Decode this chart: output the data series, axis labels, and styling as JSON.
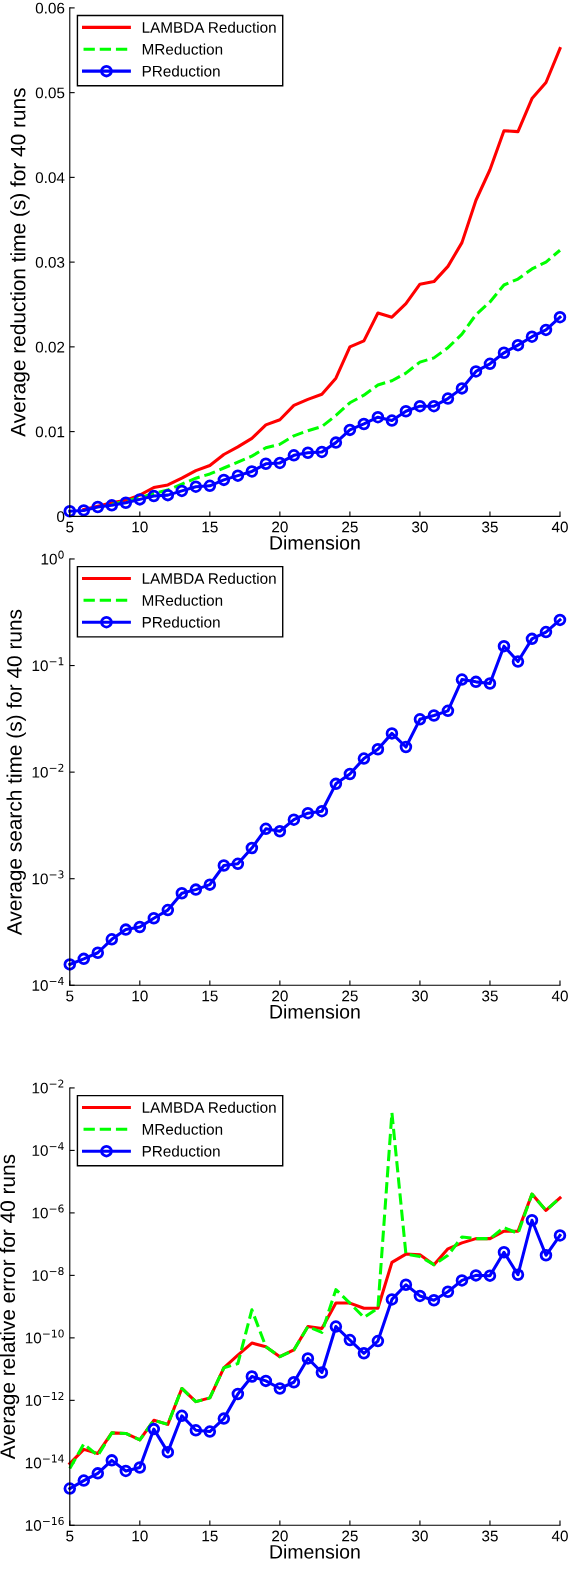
{
  "chart_data": [
    {
      "type": "line",
      "xlabel": "Dimension",
      "ylabel": "Average reduction time (s) for 40 runs",
      "x": [
        5,
        6,
        7,
        8,
        9,
        10,
        11,
        12,
        13,
        14,
        15,
        16,
        17,
        18,
        19,
        20,
        21,
        22,
        23,
        24,
        25,
        26,
        27,
        28,
        29,
        30,
        31,
        32,
        33,
        34,
        35,
        36,
        37,
        38,
        39,
        40
      ],
      "xlim": [
        5,
        40
      ],
      "xticks": [
        5,
        10,
        15,
        20,
        25,
        30,
        35,
        40
      ],
      "ylim": [
        0,
        0.06
      ],
      "yticks": [
        0,
        0.01,
        0.02,
        0.03,
        0.04,
        0.05,
        0.06
      ],
      "legend": "top left",
      "grid": false,
      "series": [
        {
          "name": "LAMBDA Reduction",
          "color": "#ff0000",
          "line_style": "solid",
          "marker": "none",
          "values": [
            null,
            0.0008,
            0.0012,
            0.0016,
            0.0019,
            0.0025,
            0.0034,
            0.0037,
            0.0045,
            0.0054,
            0.006,
            0.0073,
            0.0082,
            0.0092,
            0.0108,
            0.0114,
            0.0131,
            0.0138,
            0.0144,
            0.0163,
            0.02,
            0.0207,
            0.024,
            0.0235,
            0.0251,
            0.0274,
            0.0277,
            0.0295,
            0.0323,
            0.0373,
            0.0409,
            0.0455,
            0.0454,
            0.0493,
            0.0512,
            0.0552
          ]
        },
        {
          "name": "MReduction",
          "color": "#00ff00",
          "line_style": "dashed",
          "marker": "none",
          "values": [
            null,
            null,
            null,
            0.0014,
            0.0018,
            0.0022,
            0.0027,
            0.0031,
            0.0038,
            0.0045,
            0.005,
            0.0057,
            0.0064,
            0.0071,
            0.0081,
            0.0085,
            0.0095,
            0.0101,
            0.0106,
            0.0119,
            0.0134,
            0.0143,
            0.0155,
            0.016,
            0.0169,
            0.0182,
            0.0187,
            0.0199,
            0.0215,
            0.0238,
            0.0253,
            0.0273,
            0.028,
            0.0292,
            0.03,
            0.0314
          ]
        },
        {
          "name": "PReduction",
          "color": "#0000ff",
          "line_style": "solid",
          "marker": "circle",
          "values": [
            0.0006,
            0.0007,
            0.0011,
            0.0013,
            0.0016,
            0.002,
            0.0024,
            0.0025,
            0.003,
            0.0035,
            0.0036,
            0.0043,
            0.0048,
            0.0053,
            0.0062,
            0.0063,
            0.0072,
            0.0075,
            0.0076,
            0.0087,
            0.0102,
            0.0109,
            0.0117,
            0.0113,
            0.0124,
            0.013,
            0.013,
            0.0139,
            0.0151,
            0.0171,
            0.018,
            0.0193,
            0.0202,
            0.0212,
            0.022,
            0.0235
          ]
        }
      ]
    },
    {
      "type": "line",
      "xlabel": "Dimension",
      "ylabel": "Average search time (s) for 40 runs",
      "log": "y",
      "x": [
        5,
        6,
        7,
        8,
        9,
        10,
        11,
        12,
        13,
        14,
        15,
        16,
        17,
        18,
        19,
        20,
        21,
        22,
        23,
        24,
        25,
        26,
        27,
        28,
        29,
        30,
        31,
        32,
        33,
        34,
        35,
        36,
        37,
        38,
        39,
        40
      ],
      "xlim": [
        5,
        40
      ],
      "xticks": [
        5,
        10,
        15,
        20,
        25,
        30,
        35,
        40
      ],
      "ylim": [
        0.0001,
        1
      ],
      "yticks": [
        {
          "value": 0.0001,
          "label": "10$^{−4}$"
        },
        {
          "value": 0.001,
          "label": "10$^{−3}$"
        },
        {
          "value": 0.01,
          "label": "10$^{−2}$"
        },
        {
          "value": 0.1,
          "label": "10$^{−1}$"
        },
        {
          "value": 1,
          "label": "10$^{0}$"
        }
      ],
      "legend": "top left",
      "grid": false,
      "series": [
        {
          "name": "LAMBDA Reduction",
          "color": "#ff0000",
          "line_style": "solid",
          "marker": "none",
          "values": [
            null,
            null,
            null,
            null,
            null,
            null,
            null,
            null,
            null,
            null,
            null,
            null,
            null,
            null,
            null,
            null,
            null,
            null,
            null,
            null,
            null,
            null,
            null,
            null,
            null,
            null,
            null,
            null,
            null,
            null,
            null,
            null,
            null,
            null,
            null,
            null
          ]
        },
        {
          "name": "MReduction",
          "color": "#00ff00",
          "line_style": "dashed",
          "marker": "none",
          "values": [
            null,
            null,
            null,
            null,
            null,
            null,
            null,
            null,
            null,
            null,
            null,
            null,
            null,
            null,
            null,
            null,
            null,
            null,
            null,
            null,
            null,
            null,
            null,
            null,
            null,
            null,
            null,
            null,
            null,
            null,
            null,
            null,
            null,
            null,
            null,
            null
          ]
        },
        {
          "name": "PReduction",
          "color": "#0000ff",
          "line_style": "solid",
          "marker": "circle",
          "values": [
            0.000157,
            0.000177,
            0.000202,
            0.00027,
            0.000333,
            0.000352,
            0.000426,
            0.000508,
            0.00073,
            0.00079,
            0.00088,
            0.00133,
            0.00138,
            0.00194,
            0.00294,
            0.00279,
            0.00358,
            0.00412,
            0.0043,
            0.00776,
            0.0096,
            0.0134,
            0.0164,
            0.0231,
            0.0172,
            0.0313,
            0.034,
            0.0376,
            0.0739,
            0.0703,
            0.0679,
            0.152,
            0.109,
            0.178,
            0.206,
            0.268
          ]
        }
      ]
    },
    {
      "type": "line",
      "xlabel": "Dimension",
      "ylabel": "Average relative error for 40 runs",
      "log": "y",
      "x": [
        5,
        6,
        7,
        8,
        9,
        10,
        11,
        12,
        13,
        14,
        15,
        16,
        17,
        18,
        19,
        20,
        21,
        22,
        23,
        24,
        25,
        26,
        27,
        28,
        29,
        30,
        31,
        32,
        33,
        34,
        35,
        36,
        37,
        38,
        39,
        40
      ],
      "xlim": [
        5,
        40
      ],
      "xticks": [
        5,
        10,
        15,
        20,
        25,
        30,
        35,
        40
      ],
      "ylim": [
        1e-16,
        0.01
      ],
      "yticks": [
        {
          "value": 1e-16,
          "label": "10$^{−16}$"
        },
        {
          "value": 1e-14,
          "label": "10$^{−14}$"
        },
        {
          "value": 1e-12,
          "label": "10$^{−12}$"
        },
        {
          "value": 1e-10,
          "label": "10$^{−10}$"
        },
        {
          "value": 1e-08,
          "label": "10$^{−8}$"
        },
        {
          "value": 1e-06,
          "label": "10$^{−6}$"
        },
        {
          "value": 0.0001,
          "label": "10$^{−4}$"
        },
        {
          "value": 0.01,
          "label": "10$^{−2}$"
        }
      ],
      "legend": "top left",
      "grid": false,
      "series": [
        {
          "name": "LAMBDA Reduction",
          "color": "#ff0000",
          "line_style": "solid",
          "marker": "none",
          "values": [
            9.5e-15,
            2.7e-14,
            2e-14,
            9.1e-14,
            8.7e-14,
            5.4e-14,
            2.3e-13,
            1.7e-13,
            2.4e-12,
            9.1e-13,
            1.2e-12,
            1.1e-11,
            2.8e-11,
            6.8e-11,
            5.2e-11,
            2.5e-11,
            4.1e-11,
            2.3e-10,
            2e-10,
            1.3e-09,
            1.3e-09,
            8.9e-10,
            8.9e-10,
            2.6e-08,
            4.8e-08,
            4.6e-08,
            2.2e-08,
            7.1e-08,
            1.1e-07,
            1.5e-07,
            1.5e-07,
            2.6e-07,
            2.6e-07,
            4e-06,
            1.2e-06,
            3e-06
          ]
        },
        {
          "name": "MReduction",
          "color": "#00ff00",
          "line_style": "dashed",
          "marker": "none",
          "values": [
            6.6e-15,
            4e-14,
            1.7e-14,
            9.1e-14,
            8.7e-14,
            5.4e-14,
            2.3e-13,
            1.7e-13,
            2.4e-12,
            9.1e-13,
            1.2e-12,
            1.1e-11,
            1.5e-11,
            7.9e-10,
            5.2e-11,
            2.5e-11,
            4.1e-11,
            2.3e-10,
            1.5e-10,
            3.5e-09,
            1.3e-09,
            4.5e-10,
            8.9e-10,
            0.0016,
            4.8e-08,
            4e-08,
            2.2e-08,
            4.4e-08,
            1.7e-07,
            1.5e-07,
            1.5e-07,
            3.4e-07,
            2.2e-07,
            4e-06,
            1.2e-06,
            3e-06
          ]
        },
        {
          "name": "PReduction",
          "color": "#0000ff",
          "line_style": "solid",
          "marker": "circle",
          "values": [
            1.5e-15,
            2.7e-15,
            4.6e-15,
            1.2e-14,
            5.5e-15,
            7.1e-15,
            1.2e-13,
            2.2e-14,
            3.2e-13,
            1.1e-13,
            1e-13,
            2.6e-13,
            1.6e-12,
            5.8e-12,
            4.2e-12,
            2.4e-12,
            3.8e-12,
            2.2e-11,
            7.8e-12,
            2.3e-10,
            8.5e-11,
            3.2e-11,
            7.9e-11,
            1.7e-09,
            5e-09,
            2.2e-09,
            1.6e-09,
            3e-09,
            6.9e-09,
            1e-08,
            9.8e-09,
            5.5e-08,
            1.05e-08,
            5.8e-07,
            4.4e-08,
            1.9e-07
          ]
        }
      ]
    }
  ]
}
